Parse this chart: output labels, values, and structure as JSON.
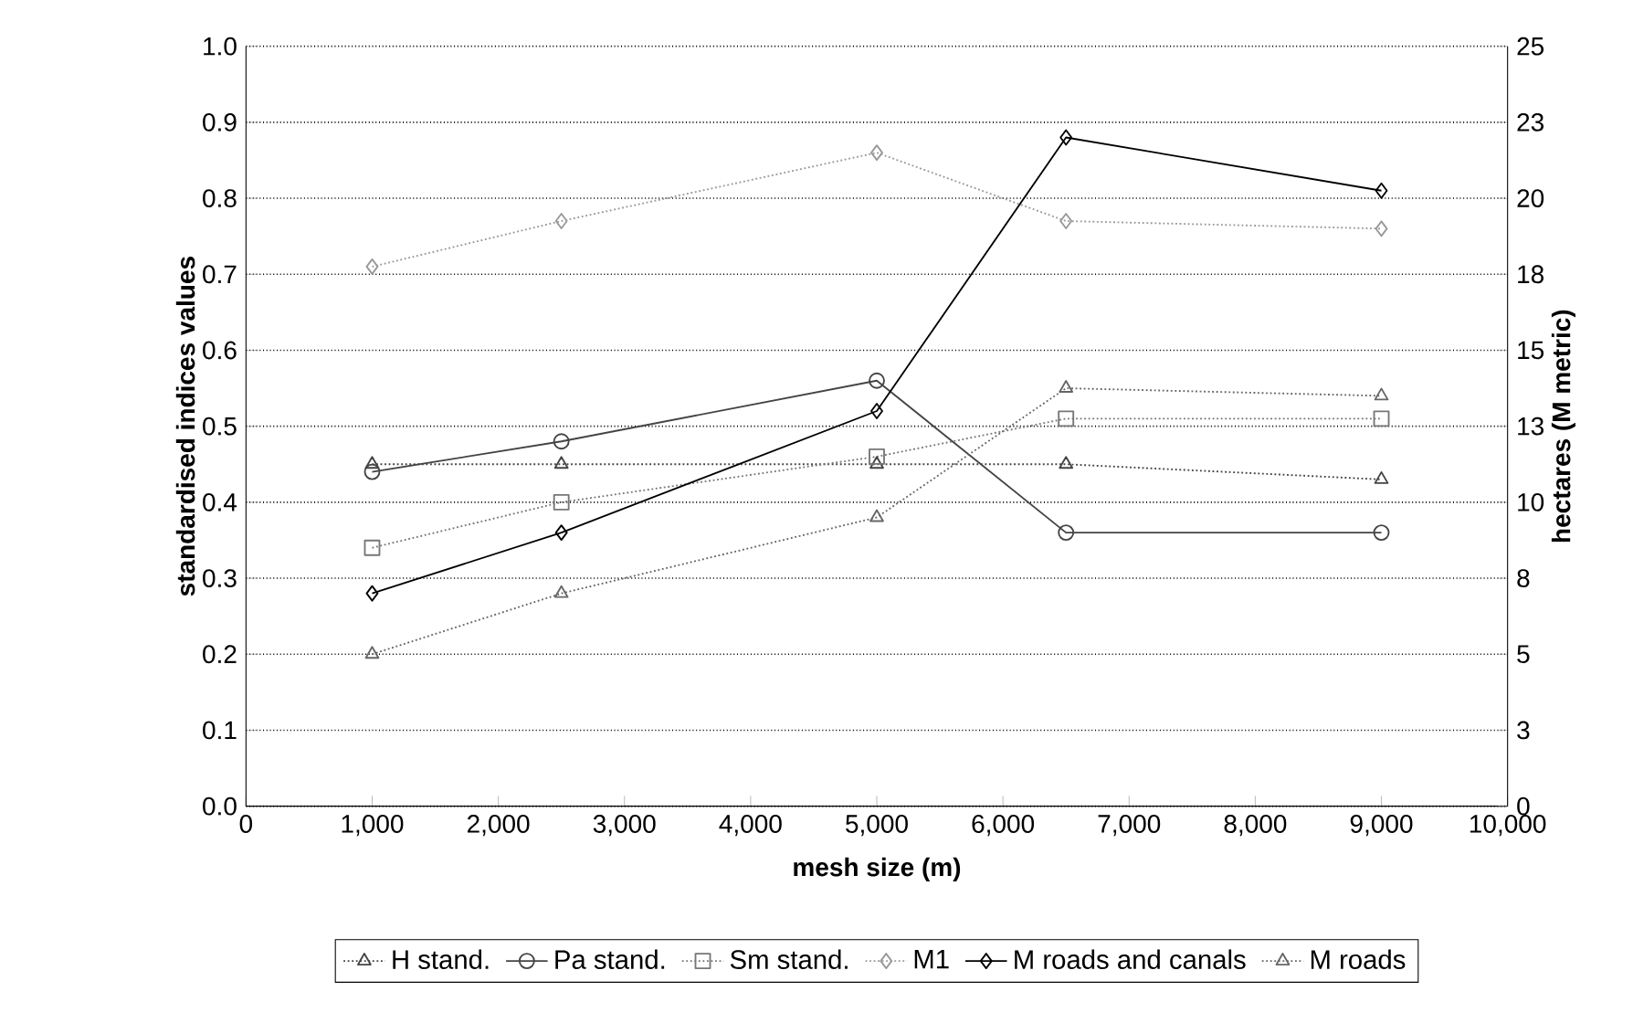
{
  "chart_data": {
    "type": "line",
    "xlabel": "mesh size (m)",
    "ylabel": "standardised indices values",
    "y2label": "hectares  (M metric)",
    "x": [
      1000,
      2500,
      5000,
      6500,
      9000
    ],
    "series": [
      {
        "name": "H stand.",
        "color": "#444444",
        "marker": "triangle",
        "line_style": "dotted",
        "values": [
          0.45,
          0.45,
          0.45,
          0.45,
          0.43
        ]
      },
      {
        "name": "Pa stand.",
        "color": "#444444",
        "marker": "circle",
        "line_style": "solid",
        "values": [
          0.44,
          0.48,
          0.56,
          0.36,
          0.36
        ]
      },
      {
        "name": "Sm stand.",
        "color": "#777777",
        "marker": "square",
        "line_style": "dotted",
        "values": [
          0.34,
          0.4,
          0.46,
          0.51,
          0.51
        ]
      },
      {
        "name": "M1",
        "color": "#999999",
        "marker": "diamond",
        "line_style": "dotted",
        "values": [
          0.71,
          0.77,
          0.86,
          0.77,
          0.76
        ]
      },
      {
        "name": "M roads and canals",
        "color": "#000000",
        "marker": "diamond",
        "line_style": "solid",
        "values": [
          0.28,
          0.36,
          0.52,
          0.88,
          0.81
        ]
      },
      {
        "name": "M roads",
        "color": "#666666",
        "marker": "triangle",
        "line_style": "dotted",
        "values": [
          0.2,
          0.28,
          0.38,
          0.55,
          0.54
        ]
      }
    ],
    "xlim": [
      0,
      10000
    ],
    "xticks": [
      0,
      {
        "value": 1000,
        "label": "1,000"
      },
      {
        "value": 2000,
        "label": "2,000"
      },
      {
        "value": 3000,
        "label": "3,000"
      },
      {
        "value": 4000,
        "label": "4,000"
      },
      {
        "value": 5000,
        "label": "5,000"
      },
      {
        "value": 6000,
        "label": "6,000"
      },
      {
        "value": 7000,
        "label": "7,000"
      },
      {
        "value": 8000,
        "label": "8,000"
      },
      {
        "value": 9000,
        "label": "9,000"
      },
      {
        "value": 10000,
        "label": "10,000"
      }
    ],
    "ylim": [
      0,
      1
    ],
    "yticks": [
      {
        "value": 0,
        "label": "0.0"
      },
      0.1,
      0.2,
      0.3,
      0.4,
      0.5,
      0.6,
      0.7,
      0.8,
      0.9,
      {
        "value": 1,
        "label": "1.0"
      }
    ],
    "y2lim": [
      0,
      25
    ],
    "y2ticks": [
      0,
      {
        "value": 2.5,
        "label": "3"
      },
      5,
      {
        "value": 7.5,
        "label": "8"
      },
      10,
      {
        "value": 12.5,
        "label": "13"
      },
      15,
      {
        "value": 17.5,
        "label": "18"
      },
      20,
      {
        "value": 22.5,
        "label": "23"
      },
      25
    ],
    "grid": "y",
    "legend": "bottom"
  }
}
